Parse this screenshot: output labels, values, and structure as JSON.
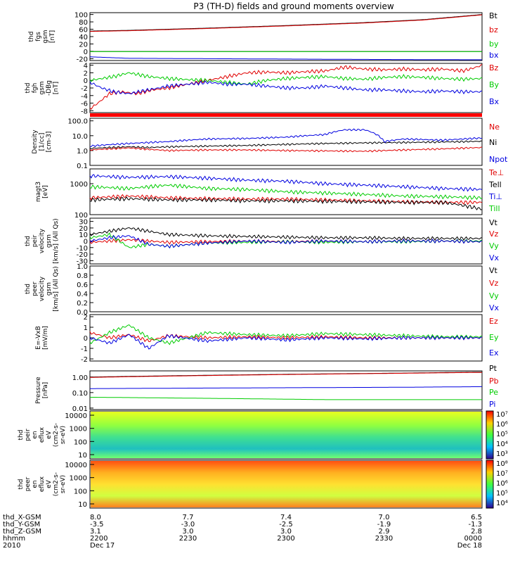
{
  "title": "P3 (TH-D) fields and ground moments overview",
  "colors": {
    "black": "#000000",
    "red": "#e00000",
    "green": "#00cc00",
    "blue": "#0000e0",
    "cyan": "#00cccc"
  },
  "chart_data": [
    {
      "id": "fgs",
      "type": "line",
      "ylabel": [
        "thd",
        "fgs",
        "gsm",
        "[nT]"
      ],
      "ylim": [
        -25,
        105
      ],
      "yticks": [
        100,
        80,
        60,
        40,
        20,
        0,
        -20
      ],
      "ytick_labels": [
        "100",
        "80",
        "60",
        "40",
        "20",
        "0",
        "-20"
      ],
      "series": [
        {
          "name": "Bt",
          "color": "#000000",
          "x": [
            0,
            0.1,
            0.3,
            0.5,
            0.7,
            0.85,
            1
          ],
          "y": [
            55,
            57,
            63,
            70,
            78,
            86,
            100
          ]
        },
        {
          "name": "bz",
          "color": "#e00000",
          "x": [
            0,
            0.1,
            0.3,
            0.5,
            0.7,
            0.85,
            1
          ],
          "y": [
            54,
            56,
            62,
            69,
            77,
            85,
            99
          ]
        },
        {
          "name": "by",
          "color": "#00cc00",
          "x": [
            0,
            0.5,
            1
          ],
          "y": [
            -1,
            -1,
            -1
          ]
        },
        {
          "name": "bx",
          "color": "#0000e0",
          "x": [
            0,
            0.1,
            0.3,
            0.5,
            0.7,
            1
          ],
          "y": [
            -15,
            -19,
            -20,
            -21,
            -22,
            -23
          ]
        }
      ]
    },
    {
      "id": "fgh",
      "type": "line",
      "ylabel": [
        "thd",
        "fgh",
        "gsm",
        "-DBg",
        "[nT]"
      ],
      "ylim": [
        -8.5,
        4.5
      ],
      "yticks": [
        4,
        2,
        0,
        -2,
        -4,
        -6,
        -8
      ],
      "ytick_labels": [
        "4",
        "2",
        "0",
        "-2",
        "-4",
        "-6",
        "-8"
      ],
      "series": [
        {
          "name": "Bz",
          "color": "#e00000",
          "x": [
            0,
            0.02,
            0.05,
            0.08,
            0.12,
            0.16,
            0.2,
            0.25,
            0.3,
            0.35,
            0.4,
            0.45,
            0.5,
            0.55,
            0.6,
            0.65,
            0.7,
            0.75,
            0.8,
            0.85,
            0.9,
            0.95,
            0.97,
            1
          ],
          "y": [
            -7.5,
            -6,
            -3.5,
            -3,
            -3.5,
            -2.5,
            -2,
            -1,
            0,
            1,
            2,
            2.2,
            2,
            2.3,
            2.5,
            3.5,
            3,
            2.8,
            3,
            2.8,
            3,
            2.5,
            3,
            4
          ]
        },
        {
          "name": "By",
          "color": "#00cc00",
          "x": [
            0,
            0.03,
            0.06,
            0.1,
            0.15,
            0.2,
            0.25,
            0.3,
            0.35,
            0.4,
            0.45,
            0.5,
            0.55,
            0.6,
            0.65,
            0.7,
            0.75,
            0.8,
            0.85,
            0.9,
            0.95,
            1
          ],
          "y": [
            0,
            0.5,
            1,
            2,
            1,
            0.5,
            0.2,
            0,
            -0.5,
            -1,
            0,
            0.5,
            0.8,
            1,
            0.5,
            0.3,
            0.8,
            1,
            0.8,
            0.5,
            0.3,
            0.5
          ]
        },
        {
          "name": "Bx",
          "color": "#0000e0",
          "x": [
            0,
            0.03,
            0.06,
            0.1,
            0.15,
            0.2,
            0.25,
            0.3,
            0.35,
            0.4,
            0.45,
            0.5,
            0.55,
            0.6,
            0.65,
            0.7,
            0.75,
            0.8,
            0.85,
            0.9,
            0.95,
            1
          ],
          "y": [
            -0.5,
            -2,
            -3,
            -3.5,
            -2.5,
            -1.5,
            -1,
            -0.5,
            -1,
            -1,
            -1.5,
            -2,
            -2,
            -1.5,
            -2,
            -2.5,
            -2.5,
            -2.8,
            -3,
            -2.8,
            -3,
            -3
          ]
        }
      ]
    },
    {
      "id": "density",
      "type": "line",
      "scale": "log",
      "ylabel": [
        "Density",
        "[1/cc]",
        "[cm-3]"
      ],
      "ylim": [
        0.1,
        150
      ],
      "yticks": [
        100,
        10,
        1,
        0.1
      ],
      "ytick_labels": [
        "100.0",
        "10.0",
        "1.0",
        "0.1"
      ],
      "series": [
        {
          "name": "Ne",
          "color": "#e00000",
          "x": [
            0,
            0.05,
            0.1,
            0.15,
            0.2,
            0.3,
            0.4,
            0.5,
            0.6,
            0.7,
            0.8,
            0.9,
            1
          ],
          "y": [
            1.1,
            1.3,
            1.5,
            1.2,
            1.0,
            1.1,
            1.1,
            1.0,
            0.95,
            0.9,
            1.1,
            1.3,
            1.6
          ]
        },
        {
          "name": "Ni",
          "color": "#000000",
          "x": [
            0,
            0.05,
            0.1,
            0.15,
            0.2,
            0.3,
            0.4,
            0.5,
            0.6,
            0.7,
            0.8,
            0.9,
            1
          ],
          "y": [
            1.4,
            1.6,
            1.8,
            1.6,
            1.8,
            2.0,
            2.2,
            2.6,
            3.0,
            3.3,
            3.5,
            3.8,
            4.2
          ]
        },
        {
          "name": "Npot",
          "color": "#0000e0",
          "x": [
            0,
            0.05,
            0.1,
            0.15,
            0.2,
            0.3,
            0.4,
            0.5,
            0.6,
            0.65,
            0.7,
            0.75,
            0.8,
            0.9,
            1
          ],
          "y": [
            2.0,
            2.5,
            3.0,
            3.5,
            4.0,
            6.0,
            6.5,
            8.0,
            12.0,
            25.0,
            25.0,
            4.0,
            6.0,
            5.0,
            7.0
          ]
        }
      ]
    },
    {
      "id": "temp",
      "type": "line",
      "scale": "log",
      "ylabel": [
        "magt3",
        "[eV]"
      ],
      "ylim": [
        100,
        3000
      ],
      "yticks": [
        1000,
        100
      ],
      "ytick_labels": [
        "1000",
        "100"
      ],
      "series": [
        {
          "name": "Te⊥",
          "color": "#e00000",
          "x": [
            0,
            0.1,
            0.2,
            0.3,
            0.4,
            0.5,
            0.6,
            0.7,
            0.8,
            0.9,
            1
          ],
          "y": [
            350,
            400,
            350,
            330,
            320,
            320,
            300,
            280,
            260,
            250,
            250
          ]
        },
        {
          "name": "Tell",
          "color": "#000000",
          "x": [
            0,
            0.1,
            0.2,
            0.3,
            0.4,
            0.5,
            0.6,
            0.7,
            0.8,
            0.9,
            1
          ],
          "y": [
            300,
            330,
            300,
            300,
            280,
            280,
            270,
            260,
            250,
            250,
            150
          ]
        },
        {
          "name": "Ti⊥",
          "color": "#0000e0",
          "x": [
            0,
            0.1,
            0.2,
            0.3,
            0.4,
            0.5,
            0.6,
            0.7,
            0.8,
            0.9,
            1
          ],
          "y": [
            1800,
            1600,
            1700,
            1500,
            1300,
            1200,
            1000,
            900,
            800,
            700,
            650
          ]
        },
        {
          "name": "Till",
          "color": "#00cc00",
          "x": [
            0,
            0.1,
            0.2,
            0.3,
            0.4,
            0.5,
            0.6,
            0.7,
            0.8,
            0.9,
            1
          ],
          "y": [
            800,
            700,
            900,
            700,
            650,
            550,
            500,
            450,
            400,
            380,
            350
          ]
        }
      ]
    },
    {
      "id": "peir_vel",
      "type": "line",
      "ylabel": [
        "thd",
        "peir",
        "velocity",
        "gsm",
        "[km/s] (All Qs)"
      ],
      "ylim": [
        -35,
        35
      ],
      "yticks": [
        30,
        20,
        10,
        0,
        -10,
        -20,
        -30
      ],
      "ytick_labels": [
        "30",
        "20",
        "10",
        "0",
        "-10",
        "-20",
        "-30"
      ],
      "series": [
        {
          "name": "Vt",
          "color": "#000000",
          "x": [
            0,
            0.05,
            0.1,
            0.15,
            0.2,
            0.3,
            0.4,
            0.5,
            0.6,
            0.7,
            0.8,
            0.9,
            1
          ],
          "y": [
            10,
            15,
            20,
            15,
            10,
            8,
            7,
            6,
            5,
            5,
            4,
            4,
            4
          ]
        },
        {
          "name": "Vz",
          "color": "#e00000",
          "x": [
            0,
            0.05,
            0.1,
            0.15,
            0.2,
            0.3,
            0.4,
            0.5,
            0.6,
            0.7,
            0.8,
            0.9,
            1
          ],
          "y": [
            -2,
            0,
            2,
            0,
            -2,
            -1,
            0,
            -1,
            0,
            -1,
            0,
            0,
            -1
          ]
        },
        {
          "name": "Vy",
          "color": "#00cc00",
          "x": [
            0,
            0.05,
            0.1,
            0.15,
            0.2,
            0.3,
            0.4,
            0.5,
            0.6,
            0.7,
            0.8,
            0.9,
            1
          ],
          "y": [
            5,
            10,
            -10,
            -5,
            -8,
            -3,
            -2,
            -1,
            -2,
            -1,
            -1,
            0,
            0
          ]
        },
        {
          "name": "Vx",
          "color": "#0000e0",
          "x": [
            0,
            0.05,
            0.1,
            0.15,
            0.2,
            0.3,
            0.4,
            0.5,
            0.6,
            0.7,
            0.8,
            0.9,
            1
          ],
          "y": [
            0,
            5,
            8,
            -5,
            -8,
            -3,
            0,
            -2,
            0,
            -1,
            0,
            0,
            -1
          ]
        }
      ]
    },
    {
      "id": "peer_vel",
      "type": "line",
      "ylabel": [
        "thd",
        "peer",
        "velocity",
        "gsm",
        "[km/s] (All Qs)"
      ],
      "ylim": [
        0,
        1
      ],
      "yticks": [
        1.0,
        0.8,
        0.6,
        0.4,
        0.2,
        0.0
      ],
      "ytick_labels": [
        "1.0",
        "0.8",
        "0.6",
        "0.4",
        "0.2",
        "0.0"
      ],
      "series": [
        {
          "name": "Vt",
          "color": "#000000",
          "x": [],
          "y": []
        },
        {
          "name": "Vz",
          "color": "#e00000",
          "x": [],
          "y": []
        },
        {
          "name": "Vy",
          "color": "#00cc00",
          "x": [],
          "y": []
        },
        {
          "name": "Vx",
          "color": "#0000e0",
          "x": [],
          "y": []
        }
      ]
    },
    {
      "id": "efield",
      "type": "line",
      "ylabel": [
        "E=-VxB",
        "[mV/m]"
      ],
      "ylim": [
        -2.2,
        2.2
      ],
      "yticks": [
        2,
        1,
        0,
        -1,
        -2
      ],
      "ytick_labels": [
        "2",
        "1",
        "0",
        "-1",
        "-2"
      ],
      "series": [
        {
          "name": "Ez",
          "color": "#e00000",
          "x": [
            0,
            0.05,
            0.1,
            0.15,
            0.2,
            0.3,
            0.4,
            0.5,
            0.6,
            0.7,
            0.8,
            0.9,
            1
          ],
          "y": [
            0.5,
            0,
            0.3,
            -0.3,
            0.2,
            0,
            0.1,
            0,
            0.1,
            0,
            0,
            0,
            0
          ]
        },
        {
          "name": "Ey",
          "color": "#00cc00",
          "x": [
            0,
            0.05,
            0.1,
            0.15,
            0.2,
            0.3,
            0.4,
            0.5,
            0.6,
            0.7,
            0.8,
            0.9,
            1
          ],
          "y": [
            -0.5,
            0.5,
            1.2,
            0,
            -0.5,
            0.5,
            0.3,
            0.2,
            0.4,
            0.3,
            0.2,
            0.1,
            0.1
          ]
        },
        {
          "name": "Ex",
          "color": "#0000e0",
          "x": [
            0,
            0.05,
            0.1,
            0.15,
            0.2,
            0.3,
            0.4,
            0.5,
            0.6,
            0.7,
            0.8,
            0.9,
            1
          ],
          "y": [
            0,
            -0.5,
            0.3,
            -1,
            0.2,
            -0.3,
            0,
            -0.2,
            0,
            -0.1,
            0,
            0,
            0
          ]
        }
      ]
    },
    {
      "id": "pressure",
      "type": "line",
      "scale": "log",
      "ylabel": [
        "Pressure",
        "[nPa]"
      ],
      "ylim": [
        0.008,
        2.5
      ],
      "yticks": [
        1,
        0.1,
        0.01
      ],
      "ytick_labels": [
        "1.00",
        "0.10",
        "0.01"
      ],
      "series": [
        {
          "name": "Pt",
          "color": "#000000",
          "x": [
            0,
            0.2,
            0.4,
            0.6,
            0.8,
            1
          ],
          "y": [
            1.0,
            1.2,
            1.4,
            1.6,
            1.8,
            2.1
          ]
        },
        {
          "name": "Pb",
          "color": "#e00000",
          "x": [
            0,
            0.2,
            0.4,
            0.6,
            0.8,
            1
          ],
          "y": [
            0.95,
            1.15,
            1.35,
            1.55,
            1.75,
            2.0
          ]
        },
        {
          "name": "Pe",
          "color": "#00cc00",
          "x": [
            0,
            0.2,
            0.4,
            0.6,
            0.8,
            1
          ],
          "y": [
            0.05,
            0.045,
            0.04,
            0.035,
            0.035,
            0.035
          ]
        },
        {
          "name": "Pi",
          "color": "#0000e0",
          "x": [
            0,
            0.2,
            0.4,
            0.6,
            0.8,
            1
          ],
          "y": [
            0.18,
            0.19,
            0.2,
            0.21,
            0.22,
            0.24
          ]
        }
      ]
    },
    {
      "id": "peir_spec",
      "type": "heatmap",
      "ylabel": [
        "thd",
        "peir",
        "en",
        "eflux",
        "eV",
        "(cm2-s-",
        "sr-eV)"
      ],
      "ytick_labels": [
        "10000",
        "1000",
        "100",
        "10"
      ],
      "colorbar_labels": [
        "10⁷",
        "10⁶",
        "10⁵",
        "10⁴",
        "10³"
      ]
    },
    {
      "id": "peer_spec",
      "type": "heatmap",
      "ylabel": [
        "thd",
        "peer",
        "en",
        "eflux",
        "eV",
        "(cm2-s-",
        "sr-eV)"
      ],
      "ytick_labels": [
        "10000",
        "1000",
        "100",
        "10"
      ],
      "colorbar_labels": [
        "10⁸",
        "10⁷",
        "10⁶",
        "10⁵",
        "10⁴"
      ]
    }
  ],
  "xaxis": {
    "row_labels": [
      "thd_X-GSM",
      "thd_Y-GSM",
      "thd_Z-GSM",
      "hhmm",
      "2010"
    ],
    "columns": [
      {
        "values": [
          "8.0",
          "-3.5",
          "3.1",
          "2200",
          "Dec 17"
        ]
      },
      {
        "values": [
          "7.7",
          "-3.0",
          "3.0",
          "2230",
          ""
        ]
      },
      {
        "values": [
          "7.4",
          "-2.5",
          "3.0",
          "2300",
          ""
        ]
      },
      {
        "values": [
          "7.0",
          "-1.9",
          "2.9",
          "2330",
          ""
        ]
      },
      {
        "values": [
          "6.5",
          "-1.3",
          "2.8",
          "0000",
          "Dec 18"
        ]
      }
    ]
  }
}
